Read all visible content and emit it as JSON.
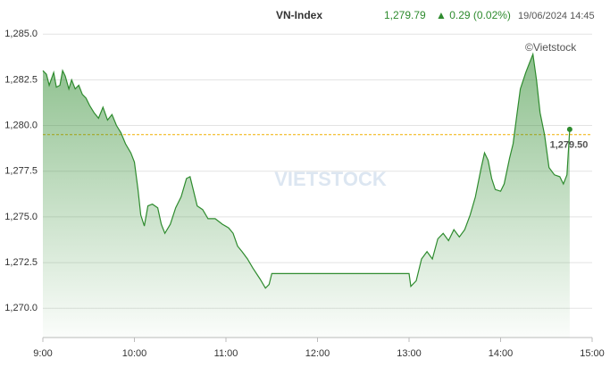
{
  "chart_data": {
    "type": "area-line",
    "title": "VN-Index",
    "last_label": "1,279.79",
    "change_label": "▲ 0.29 (0.02%)",
    "timestamp": "19/06/2024 14:45",
    "credit": "©Vietstock",
    "watermark": "VIETSTOCK",
    "color": "#2e8b2e",
    "grid": true,
    "reference": {
      "value": 1279.5,
      "label": "1,279.50",
      "color": "#f0b000"
    },
    "xlim": [
      9,
      15
    ],
    "xticks": [
      {
        "value": 9,
        "label": "9:00"
      },
      {
        "value": 10,
        "label": "10:00"
      },
      {
        "value": 11,
        "label": "11:00"
      },
      {
        "value": 12,
        "label": "12:00"
      },
      {
        "value": 13,
        "label": "13:00"
      },
      {
        "value": 14,
        "label": "14:00"
      },
      {
        "value": 15,
        "label": "15:00"
      }
    ],
    "ylim": [
      1268.4,
      1285.4
    ],
    "yticks": [
      {
        "value": 1270,
        "label": "1,270.0"
      },
      {
        "value": 1272.5,
        "label": "1,272.5"
      },
      {
        "value": 1275,
        "label": "1,275.0"
      },
      {
        "value": 1277.5,
        "label": "1,277.5"
      },
      {
        "value": 1280,
        "label": "1,280.0"
      },
      {
        "value": 1282.5,
        "label": "1,282.5"
      },
      {
        "value": 1285,
        "label": "1,285.0"
      }
    ],
    "x": [
      9.0,
      9.039,
      9.069,
      9.118,
      9.147,
      9.186,
      9.216,
      9.245,
      9.284,
      9.314,
      9.353,
      9.392,
      9.431,
      9.471,
      9.51,
      9.559,
      9.608,
      9.657,
      9.706,
      9.755,
      9.804,
      9.853,
      9.902,
      9.961,
      10.0,
      10.039,
      10.069,
      10.108,
      10.147,
      10.196,
      10.255,
      10.294,
      10.333,
      10.392,
      10.451,
      10.51,
      10.569,
      10.608,
      10.647,
      10.686,
      10.745,
      10.804,
      10.882,
      10.961,
      11.029,
      11.078,
      11.127,
      11.176,
      11.235,
      11.294,
      11.373,
      11.431,
      11.471,
      11.5,
      13.0,
      13.02,
      13.078,
      13.137,
      13.196,
      13.255,
      13.314,
      13.373,
      13.431,
      13.49,
      13.549,
      13.608,
      13.667,
      13.725,
      13.784,
      13.824,
      13.863,
      13.902,
      13.941,
      14.0,
      14.039,
      14.098,
      14.137,
      14.176,
      14.216,
      14.275,
      14.314,
      14.353,
      14.392,
      14.431,
      14.48,
      14.529,
      14.588,
      14.647,
      14.686,
      14.725,
      14.755
    ],
    "values": [
      1283.0,
      1282.8,
      1282.2,
      1282.9,
      1282.1,
      1282.2,
      1283.0,
      1282.7,
      1282.0,
      1282.5,
      1282.0,
      1282.2,
      1281.7,
      1281.5,
      1281.1,
      1280.7,
      1280.4,
      1281.0,
      1280.3,
      1280.6,
      1280.0,
      1279.6,
      1279.0,
      1278.5,
      1278.0,
      1276.5,
      1275.1,
      1274.5,
      1275.6,
      1275.7,
      1275.5,
      1274.6,
      1274.1,
      1274.6,
      1275.5,
      1276.1,
      1277.1,
      1277.2,
      1276.4,
      1275.6,
      1275.4,
      1274.9,
      1274.9,
      1274.6,
      1274.4,
      1274.1,
      1273.4,
      1273.1,
      1272.7,
      1272.2,
      1271.6,
      1271.1,
      1271.3,
      1271.9,
      1271.9,
      1271.2,
      1271.5,
      1272.7,
      1273.1,
      1272.7,
      1273.8,
      1274.1,
      1273.7,
      1274.3,
      1273.9,
      1274.3,
      1275.1,
      1276.1,
      1277.6,
      1278.5,
      1278.1,
      1277.1,
      1276.5,
      1276.4,
      1276.8,
      1278.2,
      1279.0,
      1280.5,
      1282.0,
      1282.9,
      1283.4,
      1283.9,
      1282.5,
      1280.7,
      1279.5,
      1277.7,
      1277.3,
      1277.2,
      1276.8,
      1277.3,
      1279.79
    ]
  }
}
